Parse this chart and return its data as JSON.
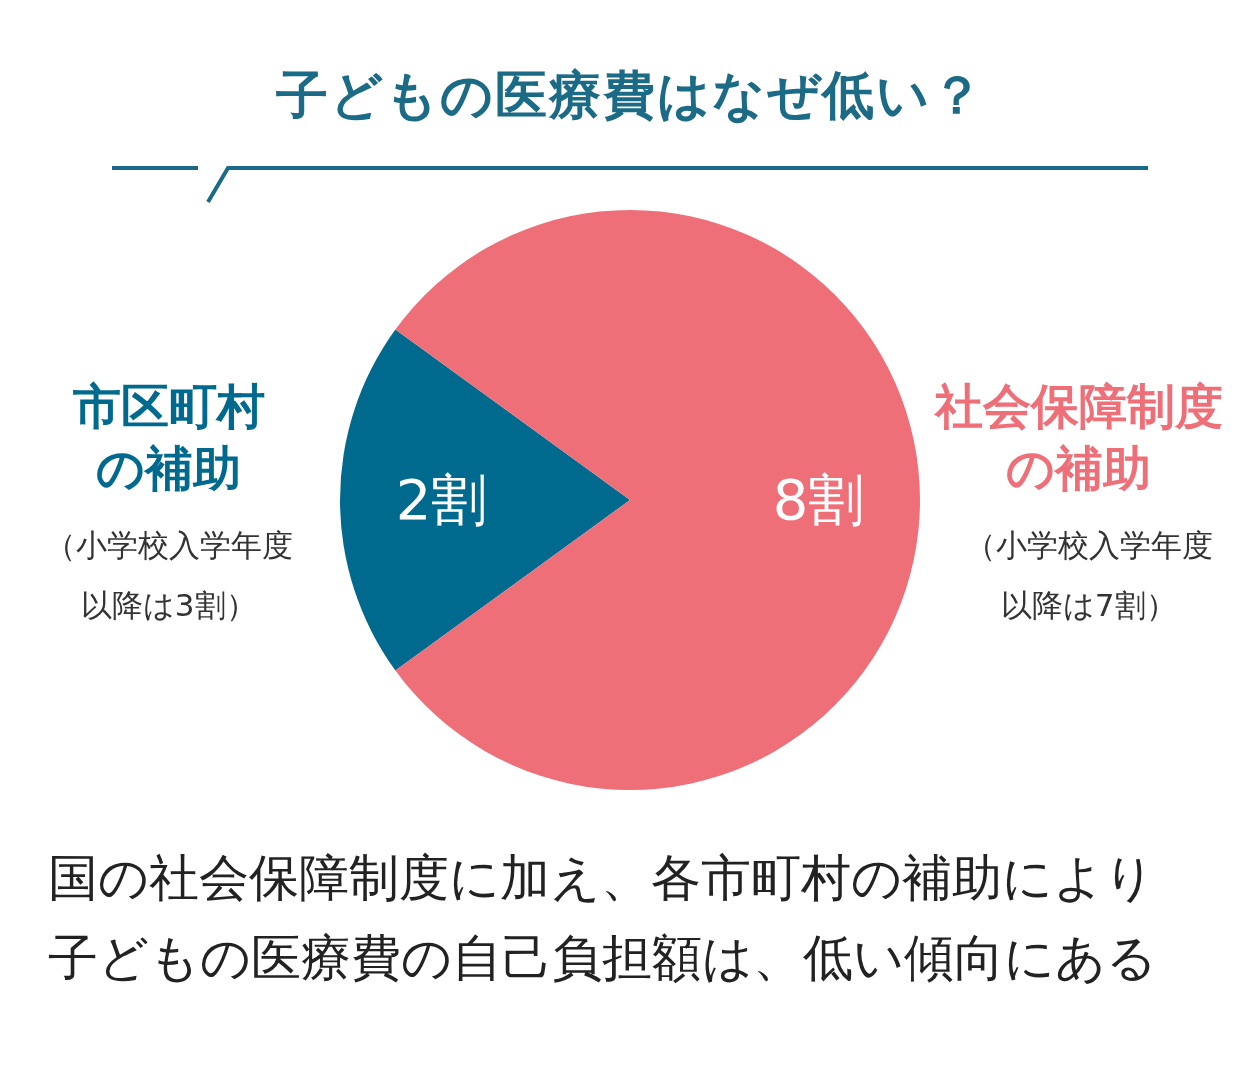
{
  "chart_data": {
    "type": "pie",
    "title": "子どもの医療費はなぜ低い？",
    "categories": [
      "市区町村の補助",
      "社会保障制度の補助"
    ],
    "values": [
      2,
      8
    ],
    "value_labels": [
      "2割",
      "8割"
    ],
    "colors": [
      "#006a8e",
      "#ef6f78"
    ],
    "annotations": [
      "（小学校入学年度以降は3割）",
      "（小学校入学年度以降は7割）",
      "国の社会保障制度に加え、各市町村の補助により子どもの医療費の自己負担額は、低い傾向にある"
    ]
  }
}
